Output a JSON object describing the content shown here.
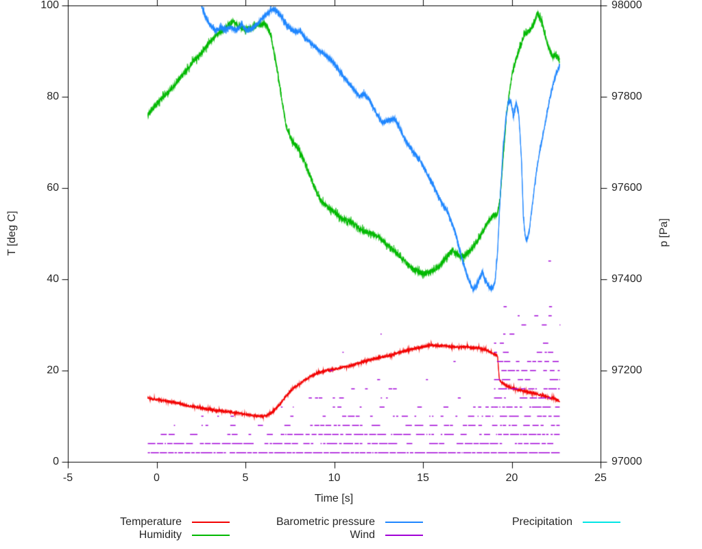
{
  "chart_data": {
    "type": "line",
    "title": "",
    "xlabel": "Time [s]",
    "ylabel_left": "T [deg C]",
    "ylabel_right": "p [Pa]",
    "xlim": [
      -5,
      25
    ],
    "ylim_left": [
      0,
      100
    ],
    "ylim_right": [
      97000,
      98000
    ],
    "x_ticks": [
      -5,
      0,
      5,
      10,
      15,
      20,
      25
    ],
    "y_ticks_left": [
      0,
      20,
      40,
      60,
      80,
      100
    ],
    "y_ticks_right": [
      97000,
      97200,
      97400,
      97600,
      97800,
      98000
    ],
    "grid": false,
    "legend_position": "bottom",
    "series": [
      {
        "name": "Temperature",
        "color": "#f20000",
        "axis": "left",
        "noise": 0.26,
        "points": [
          [
            -0.5,
            14
          ],
          [
            0.3,
            13.5
          ],
          [
            1,
            13
          ],
          [
            1.8,
            12.3
          ],
          [
            2.5,
            11.8
          ],
          [
            3.2,
            11.3
          ],
          [
            4,
            11
          ],
          [
            4.7,
            10.6
          ],
          [
            5.3,
            10.2
          ],
          [
            5.8,
            10
          ],
          [
            6.2,
            10.1
          ],
          [
            6.5,
            10.8
          ],
          [
            6.8,
            12
          ],
          [
            7.2,
            14
          ],
          [
            7.6,
            15.8
          ],
          [
            8,
            17
          ],
          [
            8.6,
            18.6
          ],
          [
            9,
            19.3
          ],
          [
            9.5,
            20
          ],
          [
            10,
            20.3
          ],
          [
            10.5,
            20.8
          ],
          [
            11,
            21.2
          ],
          [
            11.5,
            21.8
          ],
          [
            12,
            22.3
          ],
          [
            12.5,
            22.8
          ],
          [
            13,
            23.2
          ],
          [
            13.5,
            23.8
          ],
          [
            14,
            24.3
          ],
          [
            14.5,
            24.8
          ],
          [
            15,
            25.2
          ],
          [
            15.4,
            25.6
          ],
          [
            15.8,
            25.4
          ],
          [
            16.2,
            25.5
          ],
          [
            16.6,
            25.2
          ],
          [
            17,
            25.1
          ],
          [
            17.4,
            25.2
          ],
          [
            17.8,
            25
          ],
          [
            18.2,
            24.9
          ],
          [
            18.6,
            24.5
          ],
          [
            19,
            23.6
          ],
          [
            19.2,
            23.2
          ],
          [
            19.3,
            18
          ],
          [
            19.5,
            17.2
          ],
          [
            19.8,
            16.5
          ],
          [
            20.2,
            16
          ],
          [
            20.6,
            15.6
          ],
          [
            21,
            15.2
          ],
          [
            21.5,
            14.8
          ],
          [
            22,
            14.2
          ],
          [
            22.4,
            13.8
          ],
          [
            22.7,
            13.3
          ]
        ]
      },
      {
        "name": "Humidity",
        "color": "#00b800",
        "axis": "left",
        "noise": 0.55,
        "points": [
          [
            -0.5,
            76
          ],
          [
            0,
            78.5
          ],
          [
            0.5,
            80.5
          ],
          [
            1,
            82.5
          ],
          [
            1.5,
            85
          ],
          [
            2,
            87.5
          ],
          [
            2.5,
            89.5
          ],
          [
            3,
            92
          ],
          [
            3.5,
            94
          ],
          [
            4,
            95.5
          ],
          [
            4.3,
            96.5
          ],
          [
            4.7,
            95.3
          ],
          [
            5,
            94.8
          ],
          [
            5.4,
            95.2
          ],
          [
            5.8,
            95.8
          ],
          [
            6.1,
            96
          ],
          [
            6.4,
            94
          ],
          [
            6.7,
            88
          ],
          [
            7,
            80.5
          ],
          [
            7.3,
            73.5
          ],
          [
            7.6,
            70.5
          ],
          [
            8,
            68.5
          ],
          [
            8.4,
            65
          ],
          [
            8.8,
            61
          ],
          [
            9.2,
            57.5
          ],
          [
            9.6,
            55.8
          ],
          [
            10,
            54.8
          ],
          [
            10.5,
            53.2
          ],
          [
            11,
            52.5
          ],
          [
            11.5,
            50.8
          ],
          [
            12,
            50.2
          ],
          [
            12.5,
            49.3
          ],
          [
            13,
            47.5
          ],
          [
            13.5,
            45.8
          ],
          [
            14,
            43.8
          ],
          [
            14.5,
            42
          ],
          [
            15,
            41.3
          ],
          [
            15.5,
            41.8
          ],
          [
            16,
            43.2
          ],
          [
            16.4,
            45.3
          ],
          [
            16.7,
            46.4
          ],
          [
            17,
            45.2
          ],
          [
            17.3,
            45
          ],
          [
            17.7,
            46.5
          ],
          [
            18.1,
            48.5
          ],
          [
            18.5,
            51.5
          ],
          [
            18.9,
            53.8
          ],
          [
            19.2,
            54.4
          ],
          [
            19.35,
            58
          ],
          [
            19.5,
            66
          ],
          [
            19.7,
            76
          ],
          [
            19.9,
            82
          ],
          [
            20.1,
            86.5
          ],
          [
            20.4,
            90
          ],
          [
            20.7,
            93.5
          ],
          [
            21,
            94.5
          ],
          [
            21.2,
            95.5
          ],
          [
            21.45,
            98.3
          ],
          [
            21.7,
            96.5
          ],
          [
            21.9,
            93
          ],
          [
            22.1,
            90.5
          ],
          [
            22.3,
            88.8
          ],
          [
            22.5,
            89.3
          ],
          [
            22.7,
            87.8
          ]
        ]
      },
      {
        "name": "Barometric pressure",
        "color": "#1e86ff",
        "axis": "right",
        "noise": 4.5,
        "points": [
          [
            2.5,
            98005
          ],
          [
            2.7,
            97980
          ],
          [
            3,
            97957
          ],
          [
            3.3,
            97945
          ],
          [
            3.6,
            97952
          ],
          [
            3.9,
            97948
          ],
          [
            4.2,
            97952
          ],
          [
            4.5,
            97946
          ],
          [
            4.8,
            97958
          ],
          [
            5.1,
            97944
          ],
          [
            5.4,
            97950
          ],
          [
            5.7,
            97962
          ],
          [
            6,
            97974
          ],
          [
            6.3,
            97984
          ],
          [
            6.6,
            97993
          ],
          [
            6.9,
            97983
          ],
          [
            7.2,
            97964
          ],
          [
            7.5,
            97950
          ],
          [
            7.8,
            97942
          ],
          [
            8.1,
            97944
          ],
          [
            8.4,
            97926
          ],
          [
            8.7,
            97917
          ],
          [
            9,
            97906
          ],
          [
            9.4,
            97894
          ],
          [
            9.8,
            97882
          ],
          [
            10.2,
            97862
          ],
          [
            10.6,
            97840
          ],
          [
            11,
            97822
          ],
          [
            11.4,
            97802
          ],
          [
            11.7,
            97806
          ],
          [
            12,
            97792
          ],
          [
            12.4,
            97762
          ],
          [
            12.7,
            97744
          ],
          [
            13,
            97747
          ],
          [
            13.4,
            97752
          ],
          [
            13.7,
            97732
          ],
          [
            14,
            97704
          ],
          [
            14.4,
            97682
          ],
          [
            14.8,
            97664
          ],
          [
            15.2,
            97634
          ],
          [
            15.6,
            97604
          ],
          [
            16,
            97572
          ],
          [
            16.4,
            97546
          ],
          [
            16.8,
            97506
          ],
          [
            17.2,
            97446
          ],
          [
            17.5,
            97406
          ],
          [
            17.8,
            97378
          ],
          [
            18,
            97384
          ],
          [
            18.2,
            97404
          ],
          [
            18.35,
            97416
          ],
          [
            18.5,
            97398
          ],
          [
            18.7,
            97384
          ],
          [
            18.9,
            97380
          ],
          [
            19.05,
            97392
          ],
          [
            19.2,
            97460
          ],
          [
            19.35,
            97580
          ],
          [
            19.5,
            97680
          ],
          [
            19.65,
            97745
          ],
          [
            19.8,
            97788
          ],
          [
            19.95,
            97792
          ],
          [
            20.1,
            97755
          ],
          [
            20.25,
            97788
          ],
          [
            20.4,
            97760
          ],
          [
            20.55,
            97660
          ],
          [
            20.65,
            97540
          ],
          [
            20.75,
            97495
          ],
          [
            20.85,
            97484
          ],
          [
            21,
            97510
          ],
          [
            21.15,
            97560
          ],
          [
            21.3,
            97610
          ],
          [
            21.5,
            97665
          ],
          [
            21.7,
            97705
          ],
          [
            21.9,
            97745
          ],
          [
            22.1,
            97788
          ],
          [
            22.3,
            97822
          ],
          [
            22.5,
            97850
          ],
          [
            22.7,
            97868
          ]
        ]
      },
      {
        "name": "Wind",
        "color": "#a000d6",
        "axis": "left",
        "style": "quantized-dashes",
        "levels": [
          {
            "v": 2,
            "spans": [
              [
                -0.5,
                22.7,
                0.93
              ]
            ]
          },
          {
            "v": 4,
            "spans": [
              [
                -0.5,
                22.7,
                0.82
              ]
            ]
          },
          {
            "v": 6,
            "spans": [
              [
                -0.5,
                7,
                0.5
              ],
              [
                7,
                22.7,
                0.72
              ]
            ]
          },
          {
            "v": 8,
            "spans": [
              [
                -0.5,
                7,
                0.32
              ],
              [
                7,
                22.7,
                0.62
              ]
            ]
          },
          {
            "v": 10,
            "spans": [
              [
                -0.5,
                7,
                0.2
              ],
              [
                7,
                19,
                0.48
              ],
              [
                19,
                22.7,
                0.8
              ]
            ]
          },
          {
            "v": 12,
            "spans": [
              [
                -0.5,
                7,
                0.08
              ],
              [
                7,
                19,
                0.34
              ],
              [
                19,
                22.7,
                0.78
              ]
            ]
          },
          {
            "v": 14,
            "spans": [
              [
                0,
                7,
                0.05
              ],
              [
                7,
                19,
                0.24
              ],
              [
                19,
                22.7,
                0.72
              ]
            ]
          },
          {
            "v": 16,
            "spans": [
              [
                7,
                19,
                0.14
              ],
              [
                19,
                22.7,
                0.66
              ]
            ]
          },
          {
            "v": 18,
            "spans": [
              [
                9,
                19,
                0.07
              ],
              [
                19,
                22.7,
                0.6
              ]
            ]
          },
          {
            "v": 20,
            "spans": [
              [
                9,
                19,
                0.05
              ],
              [
                19,
                22.7,
                0.52
              ]
            ]
          },
          {
            "v": 22,
            "spans": [
              [
                10,
                19,
                0.04
              ],
              [
                19,
                22.7,
                0.46
              ]
            ]
          },
          {
            "v": 24,
            "spans": [
              [
                10,
                19,
                0.03
              ],
              [
                19,
                22.7,
                0.4
              ]
            ]
          },
          {
            "v": 26,
            "spans": [
              [
                11,
                19,
                0.03
              ],
              [
                19,
                22.7,
                0.36
              ]
            ]
          },
          {
            "v": 28,
            "spans": [
              [
                11,
                17,
                0.02
              ],
              [
                19,
                22.7,
                0.3
              ]
            ]
          },
          {
            "v": 30,
            "spans": [
              [
                11,
                17,
                0.02
              ],
              [
                19.2,
                22.7,
                0.26
              ]
            ]
          },
          {
            "v": 32,
            "spans": [
              [
                19.2,
                22.7,
                0.22
              ]
            ]
          },
          {
            "v": 34,
            "spans": [
              [
                19.2,
                22.7,
                0.18
              ]
            ]
          },
          {
            "v": 36,
            "spans": [
              [
                19.2,
                22.7,
                0.15
              ]
            ]
          },
          {
            "v": 38,
            "spans": [
              [
                19.3,
                22.7,
                0.12
              ]
            ]
          },
          {
            "v": 40,
            "spans": [
              [
                19.3,
                22.7,
                0.1
              ]
            ]
          },
          {
            "v": 42,
            "spans": [
              [
                19.3,
                22.6,
                0.07
              ]
            ]
          },
          {
            "v": 44,
            "spans": [
              [
                19.4,
                22.5,
                0.05
              ]
            ]
          }
        ]
      },
      {
        "name": "Precipitation",
        "color": "#00e5e5",
        "axis": "left",
        "noise": 0,
        "points": []
      }
    ]
  },
  "legend": {
    "columns": [
      [
        {
          "label": "Temperature"
        },
        {
          "label": "Humidity"
        }
      ],
      [
        {
          "label": "Barometric pressure"
        },
        {
          "label": "Wind"
        }
      ],
      [
        {
          "label": "Precipitation"
        }
      ]
    ]
  }
}
